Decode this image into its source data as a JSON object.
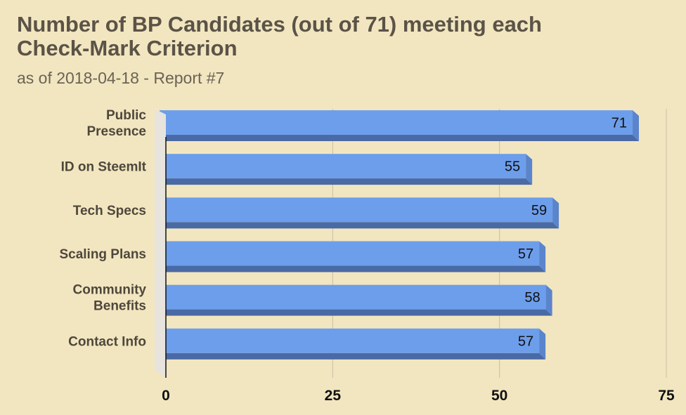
{
  "title_lines": [
    "Number of BP Candidates (out of 71) meeting each",
    "Check-Mark Criterion"
  ],
  "subtitle": "as of 2018-04-18 - Report #7",
  "colors": {
    "background": "#f2e6c0",
    "bar_face": "#6d9eeb",
    "bar_bottom": "#4a6aa5",
    "bar_side": "#5a84cc",
    "gridline": "#c8bfa3",
    "axis": "#111111"
  },
  "chart_data": {
    "type": "bar",
    "orientation": "horizontal",
    "style": "3d",
    "title": "Number of BP Candidates (out of 71) meeting each Check-Mark Criterion",
    "subtitle": "as of 2018-04-18 - Report #7",
    "categories": [
      [
        "Public",
        "Presence"
      ],
      [
        "ID on SteemIt"
      ],
      [
        "Tech Specs"
      ],
      [
        "Scaling Plans"
      ],
      [
        "Community",
        "Benefits"
      ],
      [
        "Contact Info"
      ]
    ],
    "values": [
      71,
      55,
      59,
      57,
      58,
      57
    ],
    "xlim": [
      0,
      75
    ],
    "xticks": [
      0,
      25,
      50,
      75
    ],
    "xlabel": "",
    "ylabel": "",
    "grid": true,
    "legend": "none",
    "data_labels": true
  }
}
